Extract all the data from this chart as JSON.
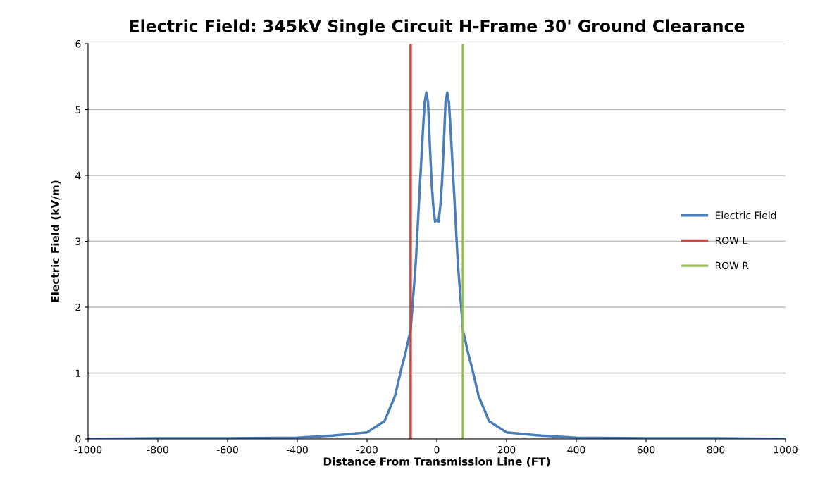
{
  "chart_data": {
    "type": "line",
    "title": "Electric Field: 345kV Single Circuit H-Frame 30' Ground Clearance",
    "xlabel": "Distance From Transmission Line (FT)",
    "ylabel": "Electric Field (kV/m)",
    "xlim": [
      -1000,
      1000
    ],
    "xticks": [
      -1000,
      -800,
      -600,
      -400,
      -200,
      0,
      200,
      400,
      600,
      800,
      1000
    ],
    "ylim": [
      0,
      6
    ],
    "yticks": [
      0,
      1,
      2,
      3,
      4,
      5,
      6
    ],
    "grid": "y",
    "legend": "right",
    "marker": "none",
    "line_style": "solid",
    "series": [
      {
        "name": "Electric Field",
        "color": "#4a7ebb",
        "x": [
          -1000,
          -800,
          -600,
          -400,
          -300,
          -200,
          -150,
          -120,
          -100,
          -90,
          -75,
          -60,
          -50,
          -40,
          -35,
          -30,
          -25,
          -20,
          -15,
          -10,
          -5,
          0,
          5,
          10,
          15,
          20,
          25,
          30,
          35,
          40,
          50,
          60,
          75,
          90,
          100,
          120,
          150,
          200,
          300,
          400,
          600,
          800,
          1000
        ],
        "values": [
          0,
          0.01,
          0.01,
          0.02,
          0.05,
          0.1,
          0.27,
          0.65,
          1.1,
          1.3,
          1.65,
          2.7,
          3.7,
          4.66,
          5.1,
          5.26,
          5.1,
          4.47,
          3.9,
          3.53,
          3.3,
          3.32,
          3.3,
          3.53,
          3.9,
          4.47,
          5.1,
          5.26,
          5.1,
          4.66,
          3.7,
          2.7,
          1.65,
          1.3,
          1.1,
          0.65,
          0.27,
          0.1,
          0.05,
          0.02,
          0.01,
          0.01,
          0
        ]
      },
      {
        "name": "ROW L",
        "color": "#be4b48",
        "x": [
          -75,
          -75
        ],
        "values": [
          0,
          6
        ]
      },
      {
        "name": "ROW R",
        "color": "#98b954",
        "x": [
          75,
          75
        ],
        "values": [
          0,
          6
        ]
      }
    ]
  }
}
